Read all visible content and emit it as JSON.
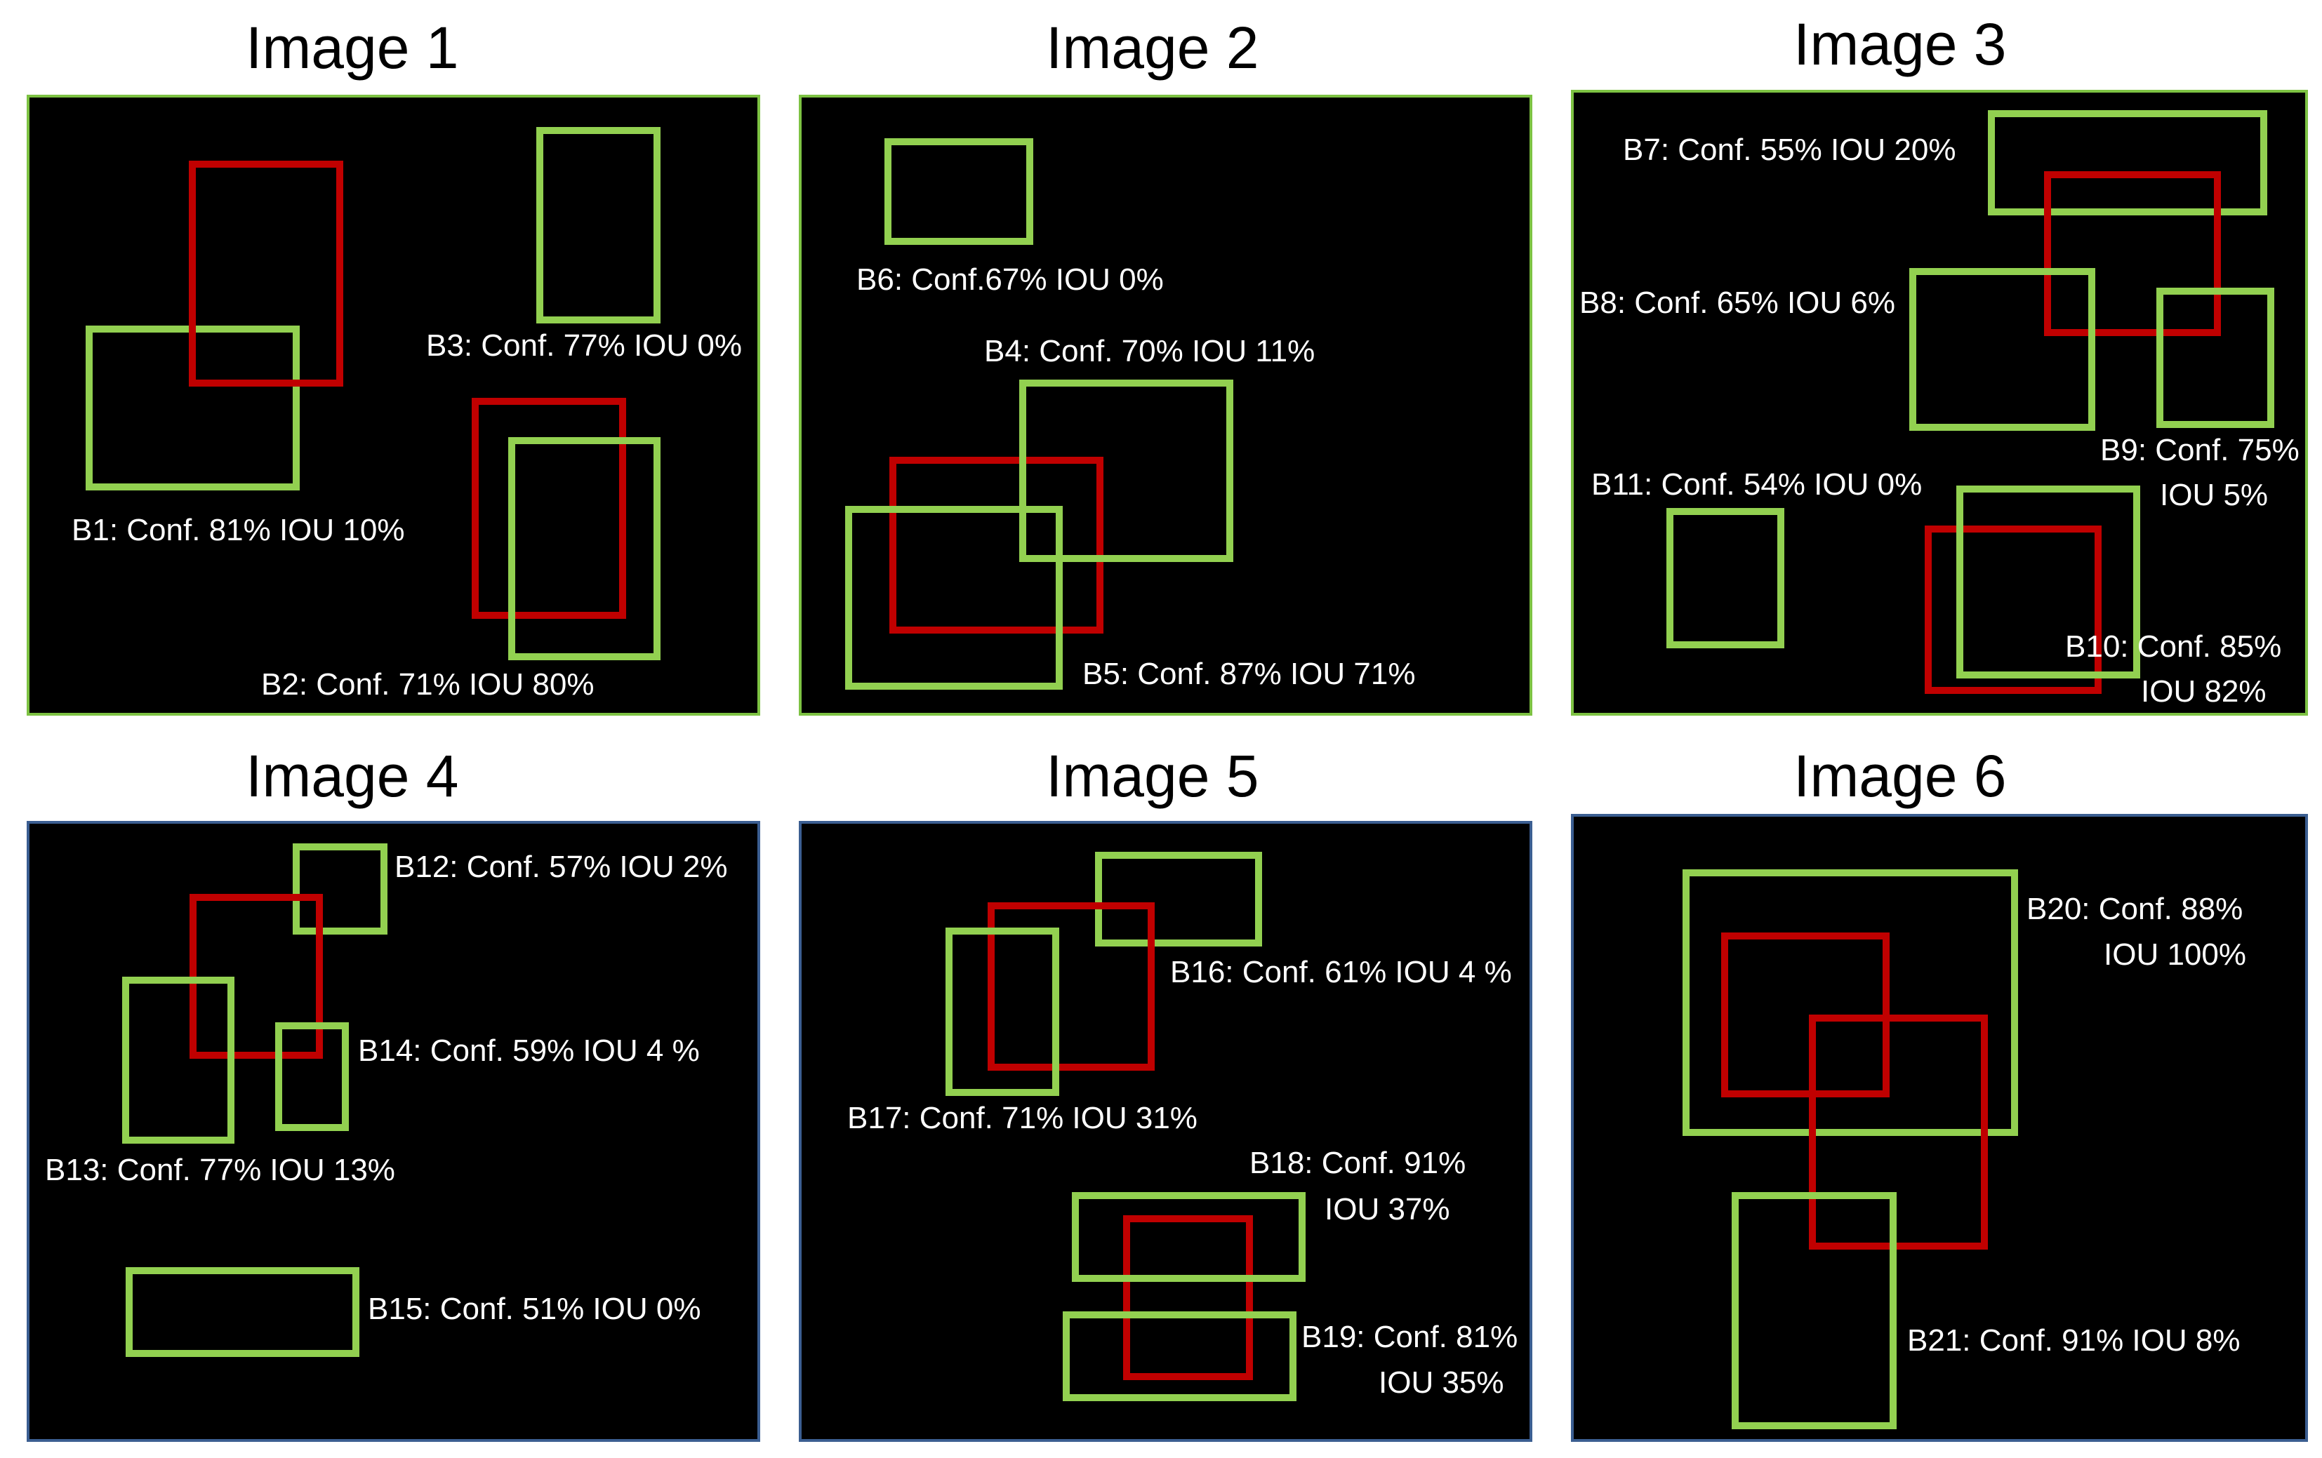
{
  "colors": {
    "detection": "#92d050",
    "ground_truth": "#c00000",
    "panel_bg": "#000000",
    "label_text": "#ffffff"
  },
  "panels": [
    {
      "title": "Image 1",
      "labels": [
        "B1: Conf. 81% IOU 10%",
        "B2: Conf. 71% IOU 80%",
        "B3: Conf. 77% IOU 0%"
      ]
    },
    {
      "title": "Image 2",
      "labels": [
        "B4: Conf. 70% IOU 11%",
        "B5: Conf. 87% IOU 71%",
        "B6: Conf.67% IOU 0%"
      ]
    },
    {
      "title": "Image 3",
      "labels": [
        "B7: Conf. 55% IOU 20%",
        "B8: Conf. 65% IOU 6%",
        "B9: Conf. 75%",
        "IOU 5%",
        "B10: Conf. 85%",
        "IOU 82%",
        "B11: Conf. 54% IOU 0%"
      ]
    },
    {
      "title": "Image 4",
      "labels": [
        "B12: Conf. 57% IOU 2%",
        "B13: Conf. 77% IOU 13%",
        "B14: Conf. 59% IOU 4 %",
        "B15: Conf. 51% IOU 0%"
      ]
    },
    {
      "title": "Image 5",
      "labels": [
        "B16: Conf. 61% IOU 4 %",
        "B17: Conf. 71% IOU 31%",
        "B18: Conf. 91%",
        "IOU 37%",
        "B19: Conf. 81%",
        "IOU 35%"
      ]
    },
    {
      "title": "Image 6",
      "labels": [
        "B20: Conf. 88%",
        "IOU 100%",
        "B21: Conf. 91% IOU 8%"
      ]
    }
  ]
}
